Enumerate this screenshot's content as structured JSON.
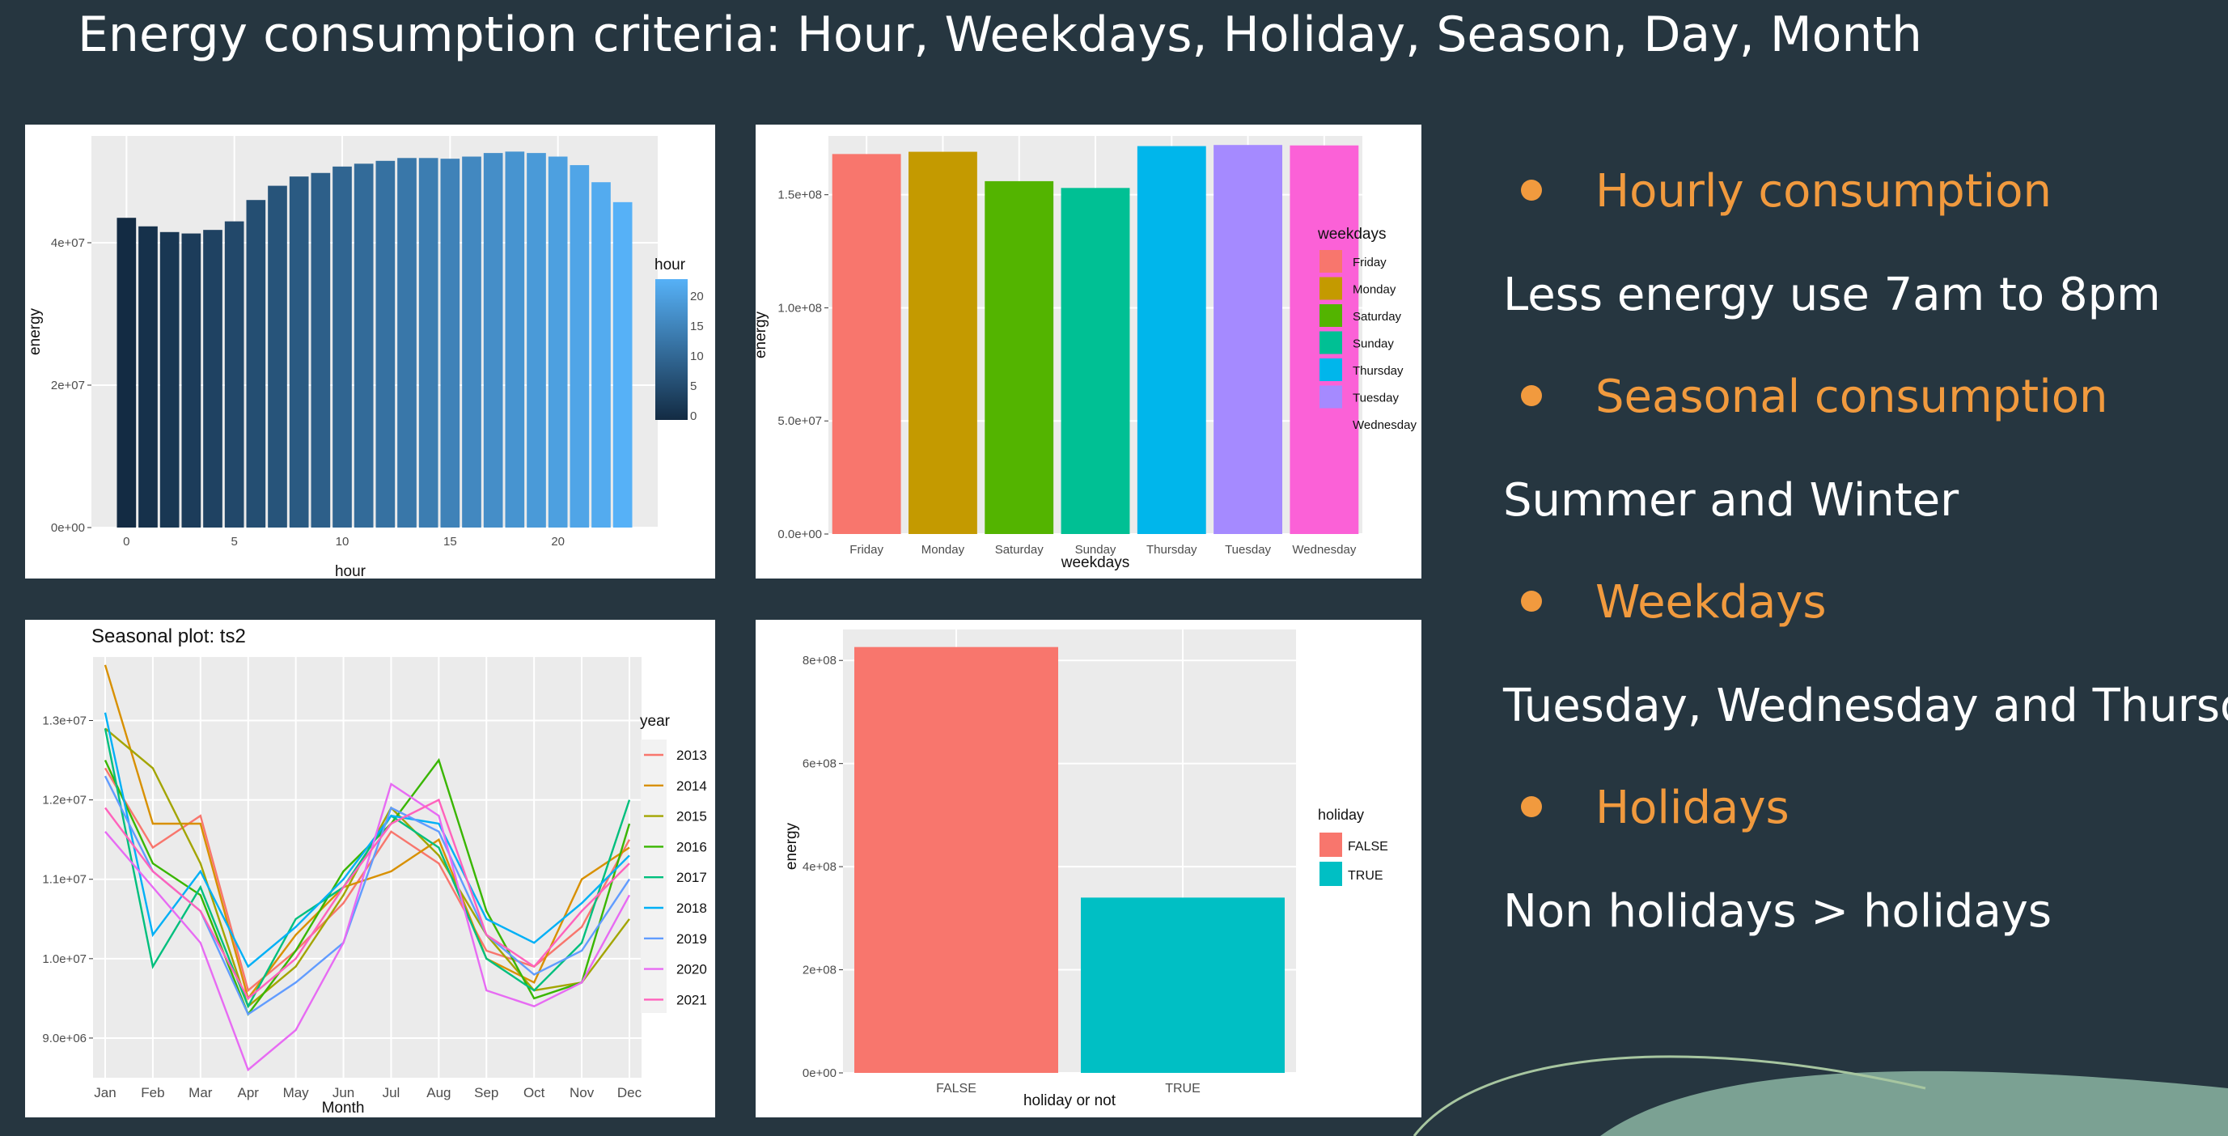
{
  "title": "Energy consumption criteria: Hour, Weekdays,  Holiday, Season, Day, Month",
  "colors": {
    "background": "#263640",
    "accent": "#f19a3e",
    "text": "#ffffff",
    "decor": "#7fa898"
  },
  "bullets": [
    {
      "heading": "Hourly consumption",
      "text": "Less energy use 7am to 8pm"
    },
    {
      "heading": "Seasonal consumption",
      "text": "Summer and Winter"
    },
    {
      "heading": "Weekdays",
      "text": "Tuesday, Wednesday and Thursday"
    },
    {
      "heading": "Holidays",
      "text": "Non holidays > holidays"
    }
  ],
  "chart_data": [
    {
      "id": "hourly",
      "type": "bar",
      "xlabel": "hour",
      "ylabel": "energy",
      "x": [
        0,
        1,
        2,
        3,
        4,
        5,
        6,
        7,
        8,
        9,
        10,
        11,
        12,
        13,
        14,
        15,
        16,
        17,
        18,
        19,
        20,
        21,
        22,
        23
      ],
      "values": [
        43500000,
        42300000,
        41500000,
        41300000,
        41800000,
        43000000,
        46000000,
        48000000,
        49300000,
        49800000,
        50700000,
        51100000,
        51500000,
        51900000,
        51900000,
        51800000,
        52100000,
        52600000,
        52800000,
        52600000,
        52100000,
        50900000,
        48500000,
        45700000
      ],
      "ylim": [
        0,
        55000000
      ],
      "yticks": [
        0,
        20000000,
        40000000
      ],
      "ytick_labels": [
        "0e+00",
        "2e+07",
        "4e+07"
      ],
      "xticks": [
        0,
        5,
        10,
        15,
        20
      ],
      "xtick_labels": [
        "0",
        "5",
        "10",
        "15",
        "20"
      ],
      "legend": {
        "title": "hour",
        "labels": [
          "20",
          "15",
          "10",
          "5",
          "0"
        ],
        "position": "right",
        "colors": [
          "#132b43",
          "#56b1f7"
        ]
      },
      "grid": true
    },
    {
      "id": "weekdays",
      "type": "bar",
      "xlabel": "weekdays",
      "ylabel": "energy",
      "categories": [
        "Friday",
        "Monday",
        "Saturday",
        "Sunday",
        "Thursday",
        "Tuesday",
        "Wednesday"
      ],
      "values": [
        168000000,
        169000000,
        156000000,
        153000000,
        171500000,
        172000000,
        171800000
      ],
      "colors": [
        "#f8766d",
        "#c49a00",
        "#53b400",
        "#00c094",
        "#00b6eb",
        "#a58aff",
        "#fb61d7"
      ],
      "ylim": [
        0,
        176000000
      ],
      "yticks": [
        0,
        50000000,
        100000000,
        150000000
      ],
      "ytick_labels": [
        "0.0e+00",
        "5.0e+07",
        "1.0e+08",
        "1.5e+08"
      ],
      "legend": {
        "title": "weekdays",
        "position": "right"
      },
      "grid": true
    },
    {
      "id": "seasonal",
      "type": "line",
      "title": "Seasonal plot: ts2",
      "xlabel": "Month",
      "ylabel": "",
      "categories": [
        "Jan",
        "Feb",
        "Mar",
        "Apr",
        "May",
        "Jun",
        "Jul",
        "Aug",
        "Sep",
        "Oct",
        "Nov",
        "Dec"
      ],
      "ylim": [
        8500000,
        13800000
      ],
      "yticks": [
        9000000,
        10000000,
        11000000,
        12000000,
        13000000
      ],
      "ytick_labels": [
        "9.0e+06",
        "1.0e+07",
        "1.1e+07",
        "1.2e+07",
        "1.3e+07"
      ],
      "legend": {
        "title": "year",
        "position": "right"
      },
      "grid": true,
      "series": [
        {
          "name": "2013",
          "color": "#f8766d",
          "values": [
            12400000,
            11400000,
            11800000,
            9600000,
            10100000,
            10700000,
            11600000,
            11200000,
            10100000,
            9900000,
            10400000,
            11500000
          ]
        },
        {
          "name": "2014",
          "color": "#d89000",
          "values": [
            13700000,
            11700000,
            11700000,
            9500000,
            10300000,
            10900000,
            11100000,
            11500000,
            10000000,
            9700000,
            11000000,
            11400000
          ]
        },
        {
          "name": "2015",
          "color": "#a3a500",
          "values": [
            12900000,
            12400000,
            11200000,
            9400000,
            9900000,
            10800000,
            11900000,
            11300000,
            10300000,
            9600000,
            9700000,
            10500000
          ]
        },
        {
          "name": "2016",
          "color": "#39b600",
          "values": [
            12500000,
            11200000,
            10800000,
            9300000,
            10100000,
            11100000,
            11700000,
            12500000,
            10600000,
            9500000,
            9700000,
            11700000
          ]
        },
        {
          "name": "2017",
          "color": "#00bf7d",
          "values": [
            12900000,
            9900000,
            10900000,
            9400000,
            10500000,
            10900000,
            11800000,
            11400000,
            10000000,
            9600000,
            10200000,
            12000000
          ]
        },
        {
          "name": "2018",
          "color": "#00b0f6",
          "values": [
            13100000,
            10300000,
            11100000,
            9900000,
            10400000,
            11000000,
            11800000,
            11700000,
            10500000,
            10200000,
            10700000,
            11300000
          ]
        },
        {
          "name": "2019",
          "color": "#619cff",
          "values": [
            12300000,
            11100000,
            10600000,
            9300000,
            9700000,
            10200000,
            11900000,
            11600000,
            10300000,
            9800000,
            10100000,
            11000000
          ]
        },
        {
          "name": "2020",
          "color": "#e76bf3",
          "values": [
            11600000,
            10900000,
            10200000,
            8600000,
            9100000,
            10200000,
            12200000,
            11800000,
            9600000,
            9400000,
            9700000,
            10800000
          ]
        },
        {
          "name": "2021",
          "color": "#ff62bc",
          "values": [
            11900000,
            11100000,
            10600000,
            9500000,
            10000000,
            10900000,
            11700000,
            12000000,
            10300000,
            9900000,
            10600000,
            11200000
          ]
        }
      ]
    },
    {
      "id": "holiday",
      "type": "bar",
      "xlabel": "holiday or not",
      "ylabel": "energy",
      "categories": [
        "FALSE",
        "TRUE"
      ],
      "values": [
        826000000,
        340000000
      ],
      "colors": [
        "#f8766d",
        "#00bfc4"
      ],
      "ylim": [
        0,
        860000000
      ],
      "yticks": [
        0,
        200000000,
        400000000,
        600000000,
        800000000
      ],
      "ytick_labels": [
        "0e+00",
        "2e+08",
        "4e+08",
        "6e+08",
        "8e+08"
      ],
      "legend": {
        "title": "holiday",
        "position": "right"
      },
      "grid": true
    }
  ]
}
